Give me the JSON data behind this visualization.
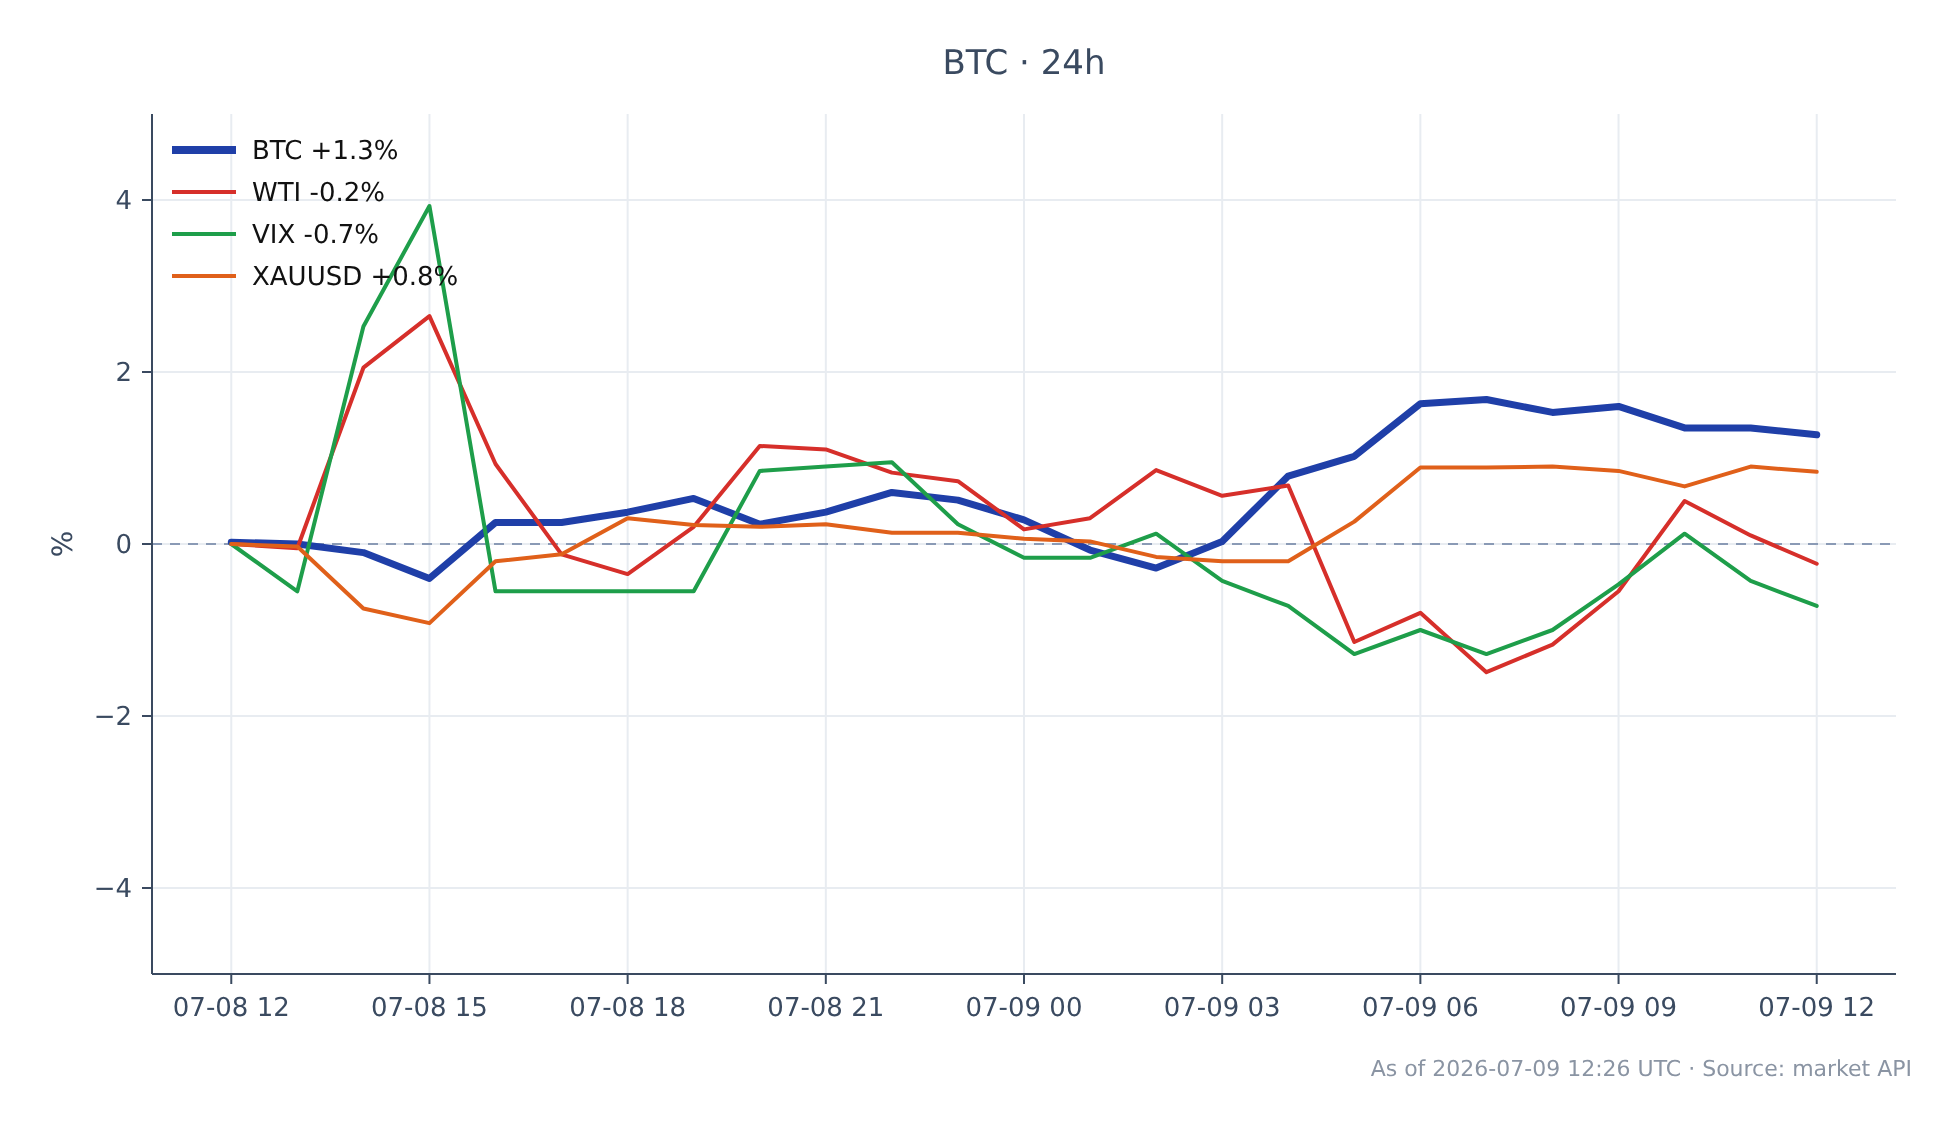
{
  "chart_data": {
    "type": "line",
    "title": "BTC · 24h",
    "ylabel": "%",
    "x": [
      "2026-07-08T12:00",
      "2026-07-08T13:00",
      "2026-07-08T14:00",
      "2026-07-08T15:00",
      "2026-07-08T16:00",
      "2026-07-08T17:00",
      "2026-07-08T18:00",
      "2026-07-08T19:00",
      "2026-07-08T20:00",
      "2026-07-08T21:00",
      "2026-07-08T22:00",
      "2026-07-08T23:00",
      "2026-07-09T00:00",
      "2026-07-09T01:00",
      "2026-07-09T02:00",
      "2026-07-09T03:00",
      "2026-07-09T04:00",
      "2026-07-09T05:00",
      "2026-07-09T06:00",
      "2026-07-09T07:00",
      "2026-07-09T08:00",
      "2026-07-09T09:00",
      "2026-07-09T10:00",
      "2026-07-09T11:00",
      "2026-07-09T12:00"
    ],
    "series": [
      {
        "name": "BTC +1.3%",
        "color": "#1f3fa8",
        "values": [
          0.02,
          0.0,
          -0.1,
          -0.4,
          0.25,
          0.25,
          0.37,
          0.53,
          0.23,
          0.37,
          0.6,
          0.51,
          0.28,
          -0.07,
          -0.28,
          0.03,
          0.79,
          1.02,
          1.63,
          1.68,
          1.53,
          1.6,
          1.35,
          1.35,
          1.27
        ]
      },
      {
        "name": "WTI -0.2%",
        "color": "#d62f2a",
        "values": [
          0.0,
          -0.05,
          2.05,
          2.65,
          0.93,
          -0.12,
          -0.35,
          0.2,
          1.14,
          1.1,
          0.83,
          0.73,
          0.17,
          0.3,
          0.86,
          0.56,
          0.68,
          -1.14,
          -0.8,
          -1.49,
          -1.17,
          -0.55,
          0.5,
          0.1,
          -0.23
        ]
      },
      {
        "name": "VIX -0.7%",
        "color": "#1e9e4a",
        "values": [
          0.0,
          -0.55,
          2.53,
          3.93,
          -0.55,
          -0.55,
          -0.55,
          -0.55,
          0.85,
          0.9,
          0.95,
          0.23,
          -0.16,
          -0.16,
          0.12,
          -0.43,
          -0.72,
          -1.28,
          -1.0,
          -1.28,
          -1.0,
          -0.47,
          0.12,
          -0.43,
          -0.72
        ]
      },
      {
        "name": "XAUUSD +0.8%",
        "color": "#e0601a",
        "values": [
          0.0,
          -0.03,
          -0.75,
          -0.92,
          -0.2,
          -0.12,
          0.3,
          0.22,
          0.2,
          0.23,
          0.13,
          0.13,
          0.06,
          0.03,
          -0.15,
          -0.2,
          -0.2,
          0.26,
          0.89,
          0.89,
          0.9,
          0.85,
          0.67,
          0.9,
          0.84
        ]
      }
    ],
    "xlim": [
      "2026-07-08T10:48",
      "2026-07-09T13:12"
    ],
    "xticks": [
      {
        "value": "2026-07-08T12:00",
        "label": "07-08 12"
      },
      {
        "value": "2026-07-08T15:00",
        "label": "07-08 15"
      },
      {
        "value": "2026-07-08T18:00",
        "label": "07-08 18"
      },
      {
        "value": "2026-07-08T21:00",
        "label": "07-08 21"
      },
      {
        "value": "2026-07-09T00:00",
        "label": "07-09 00"
      },
      {
        "value": "2026-07-09T03:00",
        "label": "07-09 03"
      },
      {
        "value": "2026-07-09T06:00",
        "label": "07-09 06"
      },
      {
        "value": "2026-07-09T09:00",
        "label": "07-09 09"
      },
      {
        "value": "2026-07-09T12:00",
        "label": "07-09 12"
      }
    ],
    "ylim": [
      -5,
      5
    ],
    "yticks": [
      {
        "value": -4,
        "label": "−4"
      },
      {
        "value": -2,
        "label": "−2"
      },
      0,
      2,
      4
    ],
    "ref_lines": [
      {
        "axis": "y",
        "value": 0,
        "color": "#8a9ab5",
        "line_style": "dashed"
      }
    ],
    "grid": true,
    "legend": "top left",
    "line_style": "solid",
    "marker": "none",
    "annotations": [
      "As of 2026-07-09 12:26 UTC · Source: market API"
    ]
  }
}
